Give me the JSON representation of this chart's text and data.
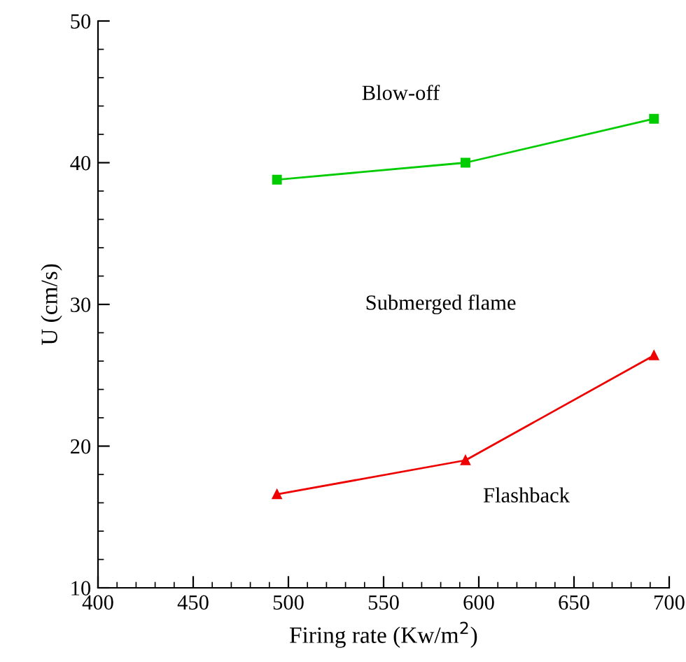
{
  "chart_data": {
    "type": "line",
    "xlabel": "Firing rate (Kw/m$^{2}$)",
    "ylabel": "U (cm/s)",
    "x": [
      494,
      593,
      692
    ],
    "series": [
      {
        "color": "#00cc00",
        "values": [
          38.8,
          40.0,
          43.1
        ],
        "marker": "square"
      },
      {
        "color": "#ee0000",
        "values": [
          16.6,
          19.0,
          26.4
        ],
        "marker": "triangle"
      }
    ],
    "xlim": [
      400,
      700
    ],
    "xticks": [
      400,
      450,
      500,
      550,
      600,
      650,
      700
    ],
    "ylim": [
      10,
      50
    ],
    "yticks": [
      10,
      20,
      30,
      40,
      50
    ],
    "line_style": "solid",
    "annotations": [
      "Blow-off",
      "Submerged flame",
      "Flashback"
    ]
  }
}
